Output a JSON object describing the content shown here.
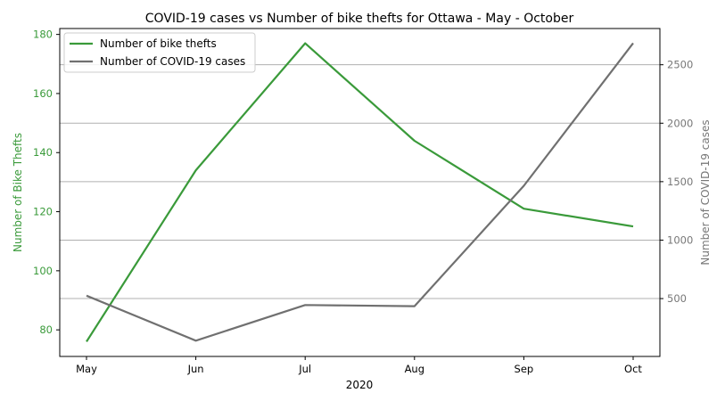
{
  "chart_data": {
    "type": "line",
    "title": "COVID-19 cases vs Number of bike thefts for Ottawa - May - October",
    "xlabel": "2020",
    "categories": [
      "May",
      "Jun",
      "Jul",
      "Aug",
      "Sep",
      "Oct"
    ],
    "y_left": {
      "label": "Number of Bike Thefts",
      "range": [
        71,
        182
      ],
      "ticks": [
        80,
        100,
        120,
        140,
        160,
        180
      ],
      "color": "#3a9a3a"
    },
    "y_right": {
      "label": "Number of COVID-19 cases",
      "range": [
        5,
        2810
      ],
      "ticks": [
        500,
        1000,
        1500,
        2000,
        2500
      ],
      "color": "#777777",
      "grid": true
    },
    "series": [
      {
        "name": "Number of bike thefts",
        "axis": "left",
        "color": "#3a9a3a",
        "values": [
          76,
          134,
          177,
          144,
          121,
          115
        ]
      },
      {
        "name": "Number of COVID-19 cases",
        "axis": "right",
        "color": "#707070",
        "values": [
          525,
          140,
          445,
          435,
          1465,
          2685
        ]
      }
    ],
    "legend": "top-left"
  }
}
